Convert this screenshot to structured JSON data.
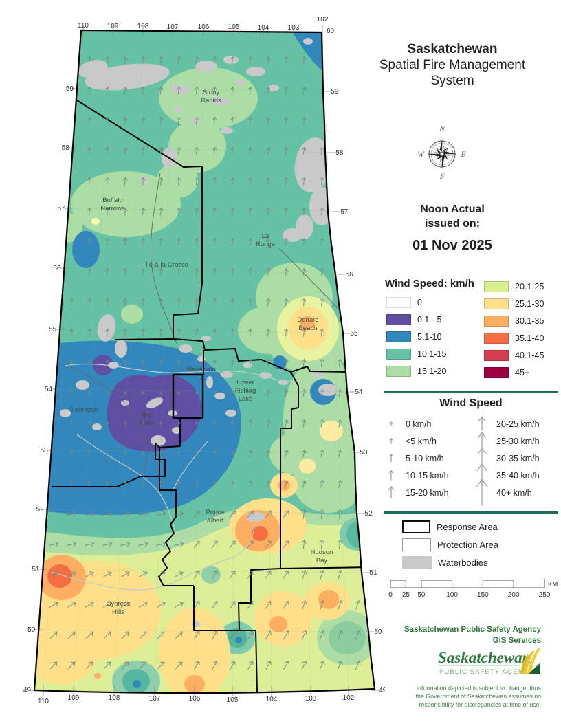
{
  "header": {
    "title_bold": "Saskatchewan",
    "title_line2": "Spatial Fire Management",
    "title_line3": "System"
  },
  "issued": {
    "line1": "Noon Actual",
    "line2": "issued on:",
    "date": "01 Nov 2025"
  },
  "compass": {
    "n": "N",
    "e": "E",
    "s": "S",
    "w": "W"
  },
  "wind_color_legend": {
    "title": "Wind Speed: km/h",
    "left": [
      {
        "label": "0",
        "color": "#ffffff"
      },
      {
        "label": "0.1 - 5",
        "color": "#5e4fa2"
      },
      {
        "label": "5.1-10",
        "color": "#3288bd"
      },
      {
        "label": "10.1-15",
        "color": "#66c2a4"
      },
      {
        "label": "15.1-20",
        "color": "#abdda4"
      }
    ],
    "right": [
      {
        "label": "20.1-25",
        "color": "#d9ef8b"
      },
      {
        "label": "25.1-30",
        "color": "#fee08b"
      },
      {
        "label": "30.1-35",
        "color": "#fdae61"
      },
      {
        "label": "35.1-40",
        "color": "#f46d43"
      },
      {
        "label": "40.1-45",
        "color": "#d53e4f"
      },
      {
        "label": "45+",
        "color": "#9e0142"
      }
    ]
  },
  "wind_arrow_legend": {
    "title": "Wind Speed",
    "left": [
      "0 km/h",
      "<5 km/h",
      "5-10 km/h",
      "10-15 km/h",
      "15-20 km/h"
    ],
    "right": [
      "20-25 km/h",
      "25-30 km/h",
      "30-35 km/h",
      "35-40 km/h",
      "40+ km/h"
    ]
  },
  "area_legend": [
    {
      "label": "Response Area",
      "type": "response"
    },
    {
      "label": "Protection Area",
      "type": "protection"
    },
    {
      "label": "Waterbodies",
      "type": "waterbodies"
    }
  ],
  "scale_bar": {
    "ticks": [
      "0",
      "25",
      "50",
      "100",
      "150",
      "200",
      "250"
    ],
    "unit": "KM"
  },
  "credits": {
    "agency": "Saskatchewan Public Safety Agency",
    "services": "GIS  Services",
    "logo_main": "Saskatchewan",
    "logo_sub": "PUBLIC SAFETY AGENCY",
    "disclaimer": [
      "Information depicted is subject to change, thus",
      "the Government of Saskatchewan assumes no",
      "responsibility for discrepancies at time of use."
    ]
  },
  "map": {
    "places": [
      {
        "id": "stony-rapids",
        "lines": [
          "Stony",
          "Rapids"
        ]
      },
      {
        "id": "buffalo-narrows",
        "lines": [
          "Buffalo",
          "Narrows"
        ]
      },
      {
        "id": "ile-a-la-crosse",
        "lines": [
          "Île-à-la-Crosse"
        ]
      },
      {
        "id": "la-ronge",
        "lines": [
          "La",
          "Ronge"
        ]
      },
      {
        "id": "denare-beach",
        "lines": [
          "Denare",
          "Beach"
        ]
      },
      {
        "id": "weyakwin",
        "lines": [
          "Weyakwin"
        ]
      },
      {
        "id": "lower-fishing-lake",
        "lines": [
          "Lower",
          "Fishing",
          "Lake"
        ]
      },
      {
        "id": "dorintosh",
        "lines": [
          "Dorintosh"
        ]
      },
      {
        "id": "big-river",
        "lines": [
          "Big",
          "River"
        ]
      },
      {
        "id": "prince-albert",
        "lines": [
          "Prince",
          "Albert"
        ]
      },
      {
        "id": "hudson-bay",
        "lines": [
          "Hudson",
          "Bay"
        ]
      },
      {
        "id": "cypress-hills",
        "lines": [
          "Cypress",
          "Hills"
        ]
      }
    ],
    "lat_left": [
      "59",
      "58",
      "57",
      "56",
      "55",
      "54",
      "53",
      "52",
      "51",
      "50",
      "49"
    ],
    "lat_right": [
      "60",
      "59",
      "58",
      "57",
      "56",
      "55",
      "54",
      "53",
      "52",
      "51",
      "50",
      "49"
    ],
    "lon_top": [
      "110",
      "109",
      "108",
      "107",
      "106",
      "105",
      "104",
      "103",
      "102"
    ],
    "lon_bottom": [
      "110",
      "109",
      "108",
      "107",
      "106",
      "105",
      "104",
      "103",
      "102"
    ]
  },
  "wind_field_zones": [
    {
      "ymin": 0,
      "ymax": 240,
      "seg": [
        {
          "xmax": 9999,
          "a": 8,
          "l": 11
        }
      ]
    },
    {
      "ymin": 240,
      "ymax": 500,
      "seg": [
        {
          "xmax": 9999,
          "a": 5,
          "l": 11
        }
      ]
    },
    {
      "ymin": 500,
      "ymax": 545,
      "seg": [
        {
          "xmax": 350,
          "a": 10,
          "l": 8
        },
        {
          "xmax": 9999,
          "a": 7,
          "l": 11
        }
      ]
    },
    {
      "ymin": 545,
      "ymax": 660,
      "seg": [
        {
          "xmax": 150,
          "a": 10,
          "l": 8
        },
        {
          "xmax": 290,
          "a": 12,
          "l": 5
        },
        {
          "xmax": 360,
          "a": 10,
          "l": 8
        },
        {
          "xmax": 9999,
          "a": 10,
          "l": 11
        }
      ]
    },
    {
      "ymin": 660,
      "ymax": 740,
      "seg": [
        {
          "xmax": 340,
          "a": 12,
          "l": 8
        },
        {
          "xmax": 9999,
          "a": 15,
          "l": 11
        }
      ]
    },
    {
      "ymin": 740,
      "ymax": 830,
      "seg": [
        {
          "xmax": 270,
          "a": 78,
          "l": 14
        },
        {
          "xmax": 430,
          "a": 40,
          "l": 13
        },
        {
          "xmax": 9999,
          "a": 6,
          "l": 13
        }
      ]
    },
    {
      "ymin": 830,
      "ymax": 920,
      "seg": [
        {
          "xmax": 270,
          "a": 60,
          "l": 14
        },
        {
          "xmax": 430,
          "a": 35,
          "l": 13
        },
        {
          "xmax": 9999,
          "a": 18,
          "l": 13
        }
      ]
    },
    {
      "ymin": 920,
      "ymax": 1010,
      "seg": [
        {
          "xmax": 270,
          "a": 45,
          "l": 14
        },
        {
          "xmax": 430,
          "a": 30,
          "l": 14
        },
        {
          "xmax": 9999,
          "a": 25,
          "l": 14
        }
      ]
    }
  ]
}
